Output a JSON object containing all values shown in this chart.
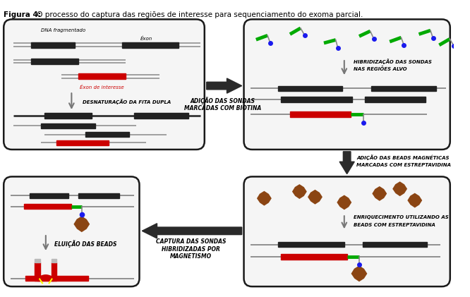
{
  "title_bold": "Figura 4:",
  "title_rest": " O processo do captura das regiões de interesse para sequenciamento do exoma parcial.",
  "bg_color": "#ffffff",
  "box_bg": "#f5f5f5",
  "box_edge": "#1a1a1a",
  "dna_gray": "#999999",
  "dna_dark": "#222222",
  "dna_red": "#cc0000",
  "probe_green": "#00aa00",
  "bead_brown": "#8B4513",
  "biotin_blue": "#1a1aee",
  "arrow_dark": "#333333",
  "arrow_gray": "#777777",
  "panel_labels": {
    "p1_dna_label1": "DNA fragmentado",
    "p1_dna_label2": "Éxon",
    "p1_exon_label": "Éxon de interesse",
    "p1_arrow_label": "DESNATURAÇÃO DA FITA DUPLA",
    "between12_label1": "ADIÇÃO DAS SONDAS",
    "between12_label2": "MARCADAS COM BIOTINA",
    "p2_arrow_label1": "HIBRIDIZAÇÃO DAS SONDAS",
    "p2_arrow_label2": "NAS REGIÕES ALVO",
    "between23_label1": "ADIÇÃO DAS BEADS MAGNÉTICAS",
    "between23_label2": "MARCADAS COM ESTREPTAVIDINA",
    "p3_arrow_label1": "ENRIQUECIMENTO UTILIZANDO AS",
    "p3_arrow_label2": "BEADS COM ESTREPTAVIDINA",
    "between34_label1": "CAPTURA DAS SONDAS",
    "between34_label2": "HIBRIDIZADAS POR",
    "between34_label3": "MAGNETISMO",
    "p4_arrow_label": "ELUIÇÃO DAS BEADS"
  }
}
